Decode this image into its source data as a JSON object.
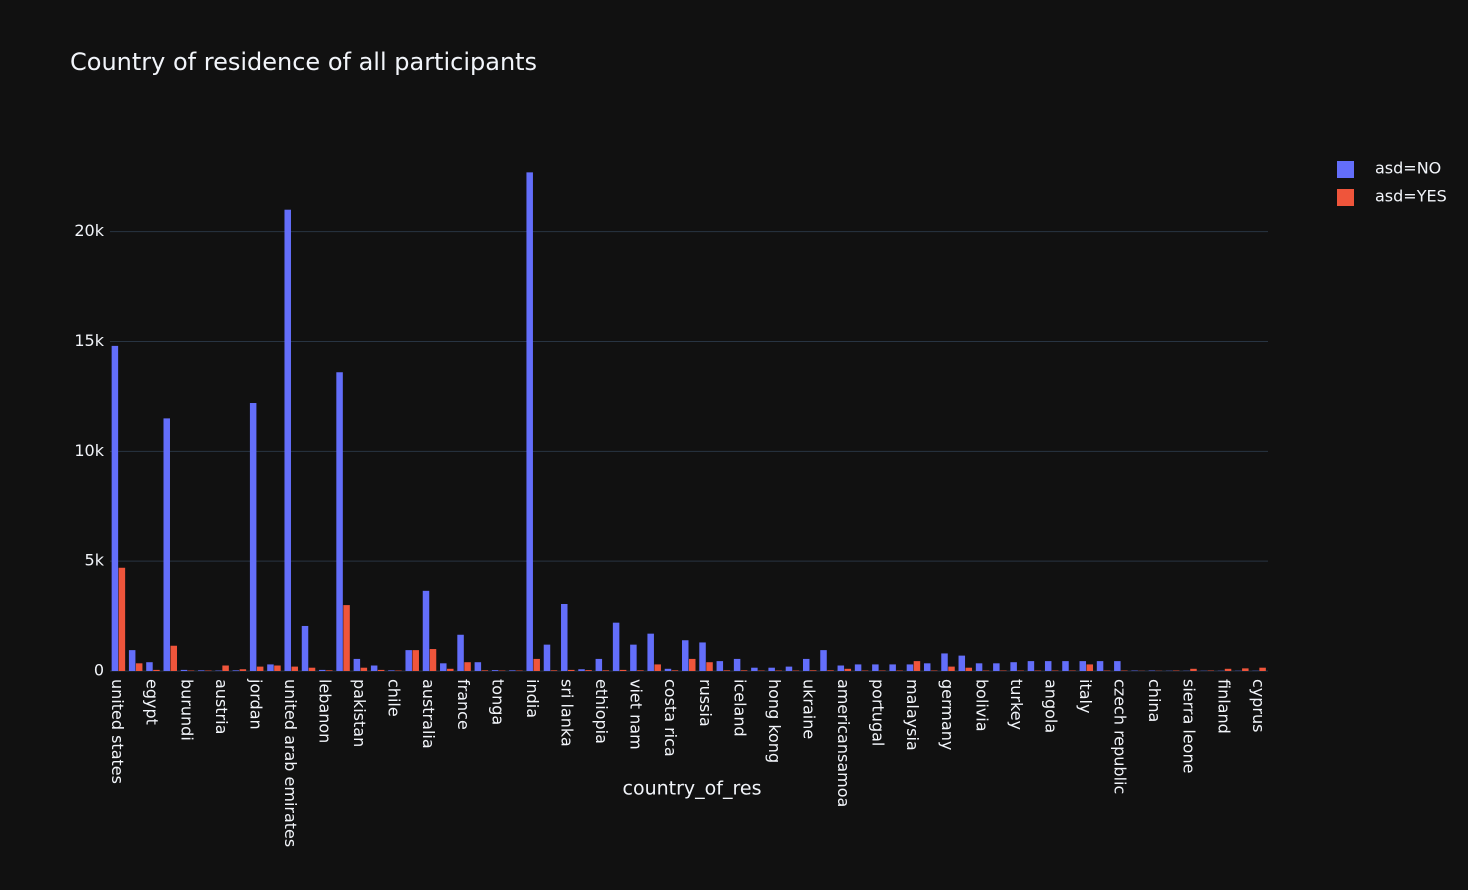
{
  "chart_data": {
    "type": "bar",
    "title": "Country of residence of all participants",
    "x_label": "country_of_res",
    "categories": [
      "united states",
      null,
      "egypt",
      null,
      "burundi",
      null,
      "austria",
      null,
      "jordan",
      null,
      "united arab emirates",
      null,
      "lebanon",
      null,
      "pakistan",
      null,
      "chile",
      null,
      "australia",
      null,
      "france",
      null,
      "tonga",
      null,
      "india",
      null,
      "sri lanka",
      null,
      "ethiopia",
      null,
      "viet nam",
      null,
      "costa rica",
      null,
      "russia",
      null,
      "iceland",
      null,
      "hong kong",
      null,
      "ukraine",
      null,
      "americansamoa",
      null,
      "portugal",
      null,
      "malaysia",
      null,
      "germany",
      null,
      "bolivia",
      null,
      "turkey",
      null,
      "angola",
      null,
      "italy",
      null,
      "czech republic",
      null,
      "china",
      null,
      "sierra leone",
      null,
      "finland",
      null,
      "cyprus"
    ],
    "series": [
      {
        "name": "asd=NO",
        "color": "#636efa",
        "values": [
          14800,
          950,
          400,
          11500,
          50,
          30,
          20,
          30,
          12200,
          300,
          21000,
          2050,
          50,
          13600,
          550,
          250,
          30,
          950,
          3650,
          350,
          1650,
          400,
          40,
          30,
          22700,
          1200,
          3050,
          80,
          550,
          2200,
          1200,
          1700,
          100,
          1400,
          1300,
          450,
          550,
          150,
          150,
          200,
          550,
          950,
          250,
          300,
          300,
          300,
          300,
          350,
          800,
          700,
          350,
          350,
          400,
          450,
          450,
          450,
          450,
          450,
          450,
          20,
          20,
          10,
          10,
          10,
          10,
          10,
          10
        ]
      },
      {
        "name": "asd=YES",
        "color": "#ef553b",
        "values": [
          4700,
          350,
          50,
          1150,
          20,
          20,
          250,
          80,
          200,
          250,
          200,
          150,
          30,
          3000,
          150,
          50,
          20,
          950,
          1000,
          100,
          400,
          30,
          20,
          20,
          550,
          30,
          50,
          40,
          30,
          50,
          30,
          300,
          30,
          550,
          400,
          30,
          30,
          20,
          20,
          20,
          30,
          30,
          100,
          20,
          20,
          20,
          450,
          20,
          200,
          150,
          20,
          20,
          20,
          20,
          20,
          20,
          300,
          20,
          20,
          10,
          10,
          20,
          100,
          20,
          100,
          120,
          150
        ]
      }
    ],
    "ylim": [
      0,
      23900
    ],
    "yticks": [
      0,
      {
        "value": 5000,
        "label": "5k"
      },
      {
        "value": 10000,
        "label": "10k"
      },
      {
        "value": 15000,
        "label": "15k"
      },
      {
        "value": 20000,
        "label": "20k"
      }
    ],
    "grid": true,
    "legend": "top-right"
  }
}
